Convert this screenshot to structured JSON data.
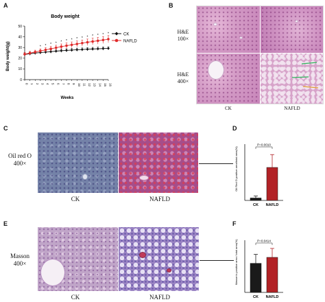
{
  "panels": {
    "a": {
      "letter": "A"
    },
    "b": {
      "letter": "B",
      "ck": "CK",
      "nafld": "NAFLD",
      "row1": "H&E\n100×",
      "row2": "H&E\n400×"
    },
    "c": {
      "letter": "C",
      "stain": "Oil red O\n400×",
      "ck": "CK",
      "nafld": "NAFLD"
    },
    "d": {
      "letter": "D"
    },
    "e": {
      "letter": "E",
      "stain": "Masson\n400×",
      "ck": "CK",
      "nafld": "NAFLD"
    },
    "f": {
      "letter": "F"
    }
  },
  "chart_data": [
    {
      "id": "body-weight",
      "type": "line",
      "title": "Body weight",
      "xlabel": "Weeks",
      "ylabel": "Body weight(g)",
      "x": [
        0,
        1,
        2,
        3,
        4,
        5,
        6,
        7,
        8,
        9,
        10,
        11,
        12,
        13,
        14,
        15,
        16
      ],
      "xlim": [
        0,
        16
      ],
      "ylim": [
        0,
        50
      ],
      "yticks": [
        0,
        10,
        20,
        30,
        40,
        50
      ],
      "legend_position": "top-right",
      "series": [
        {
          "name": "CK",
          "color": "#111111",
          "marker": "diamond",
          "values": [
            23.5,
            24.2,
            24.8,
            25.3,
            25.7,
            26.1,
            26.6,
            27.0,
            27.3,
            27.6,
            27.9,
            28.1,
            28.4,
            28.6,
            28.8,
            29.0,
            29.2
          ],
          "err": [
            1.5,
            1.5,
            1.5,
            1.5,
            1.5,
            1.5,
            1.5,
            1.5,
            1.5,
            1.5,
            1.5,
            1.5,
            1.5,
            1.5,
            1.5,
            1.5,
            1.5
          ]
        },
        {
          "name": "NAFLD",
          "color": "#e02a2a",
          "marker": "circle",
          "values": [
            23.8,
            24.8,
            25.8,
            26.8,
            27.8,
            28.8,
            29.8,
            30.8,
            31.7,
            32.5,
            33.3,
            34.1,
            34.9,
            35.6,
            36.3,
            37.0,
            37.8
          ],
          "err": [
            1.5,
            1.6,
            1.7,
            1.9,
            2.0,
            2.2,
            2.3,
            2.5,
            2.6,
            2.7,
            2.8,
            2.9,
            3.0,
            3.1,
            3.1,
            3.2,
            3.3
          ]
        }
      ],
      "sig_marks": [
        "*",
        "*",
        "*",
        "*",
        "*",
        "*",
        "*",
        "*",
        "*",
        "*",
        "*",
        "*",
        "*",
        "*"
      ]
    },
    {
      "id": "oil-red-o",
      "type": "bar",
      "ylabel": "Oil Red O positive area/total area(%)",
      "categories": [
        "CK",
        "NAFLD"
      ],
      "values": [
        1.5,
        20.5
      ],
      "errors": [
        1.2,
        8.0
      ],
      "colors": [
        "#1a1a1a",
        "#b22226"
      ],
      "ylim": [
        0,
        35
      ],
      "annotation": "P=0.0010"
    },
    {
      "id": "masson",
      "type": "bar",
      "ylabel": "Masson's positive area / total area(%)",
      "categories": [
        "CK",
        "NAFLD"
      ],
      "values": [
        19.5,
        23.5
      ],
      "errors": [
        6.0,
        6.0
      ],
      "colors": [
        "#1a1a1a",
        "#b22226"
      ],
      "ylim": [
        0,
        35
      ],
      "annotation": "P=0.0414"
    }
  ]
}
